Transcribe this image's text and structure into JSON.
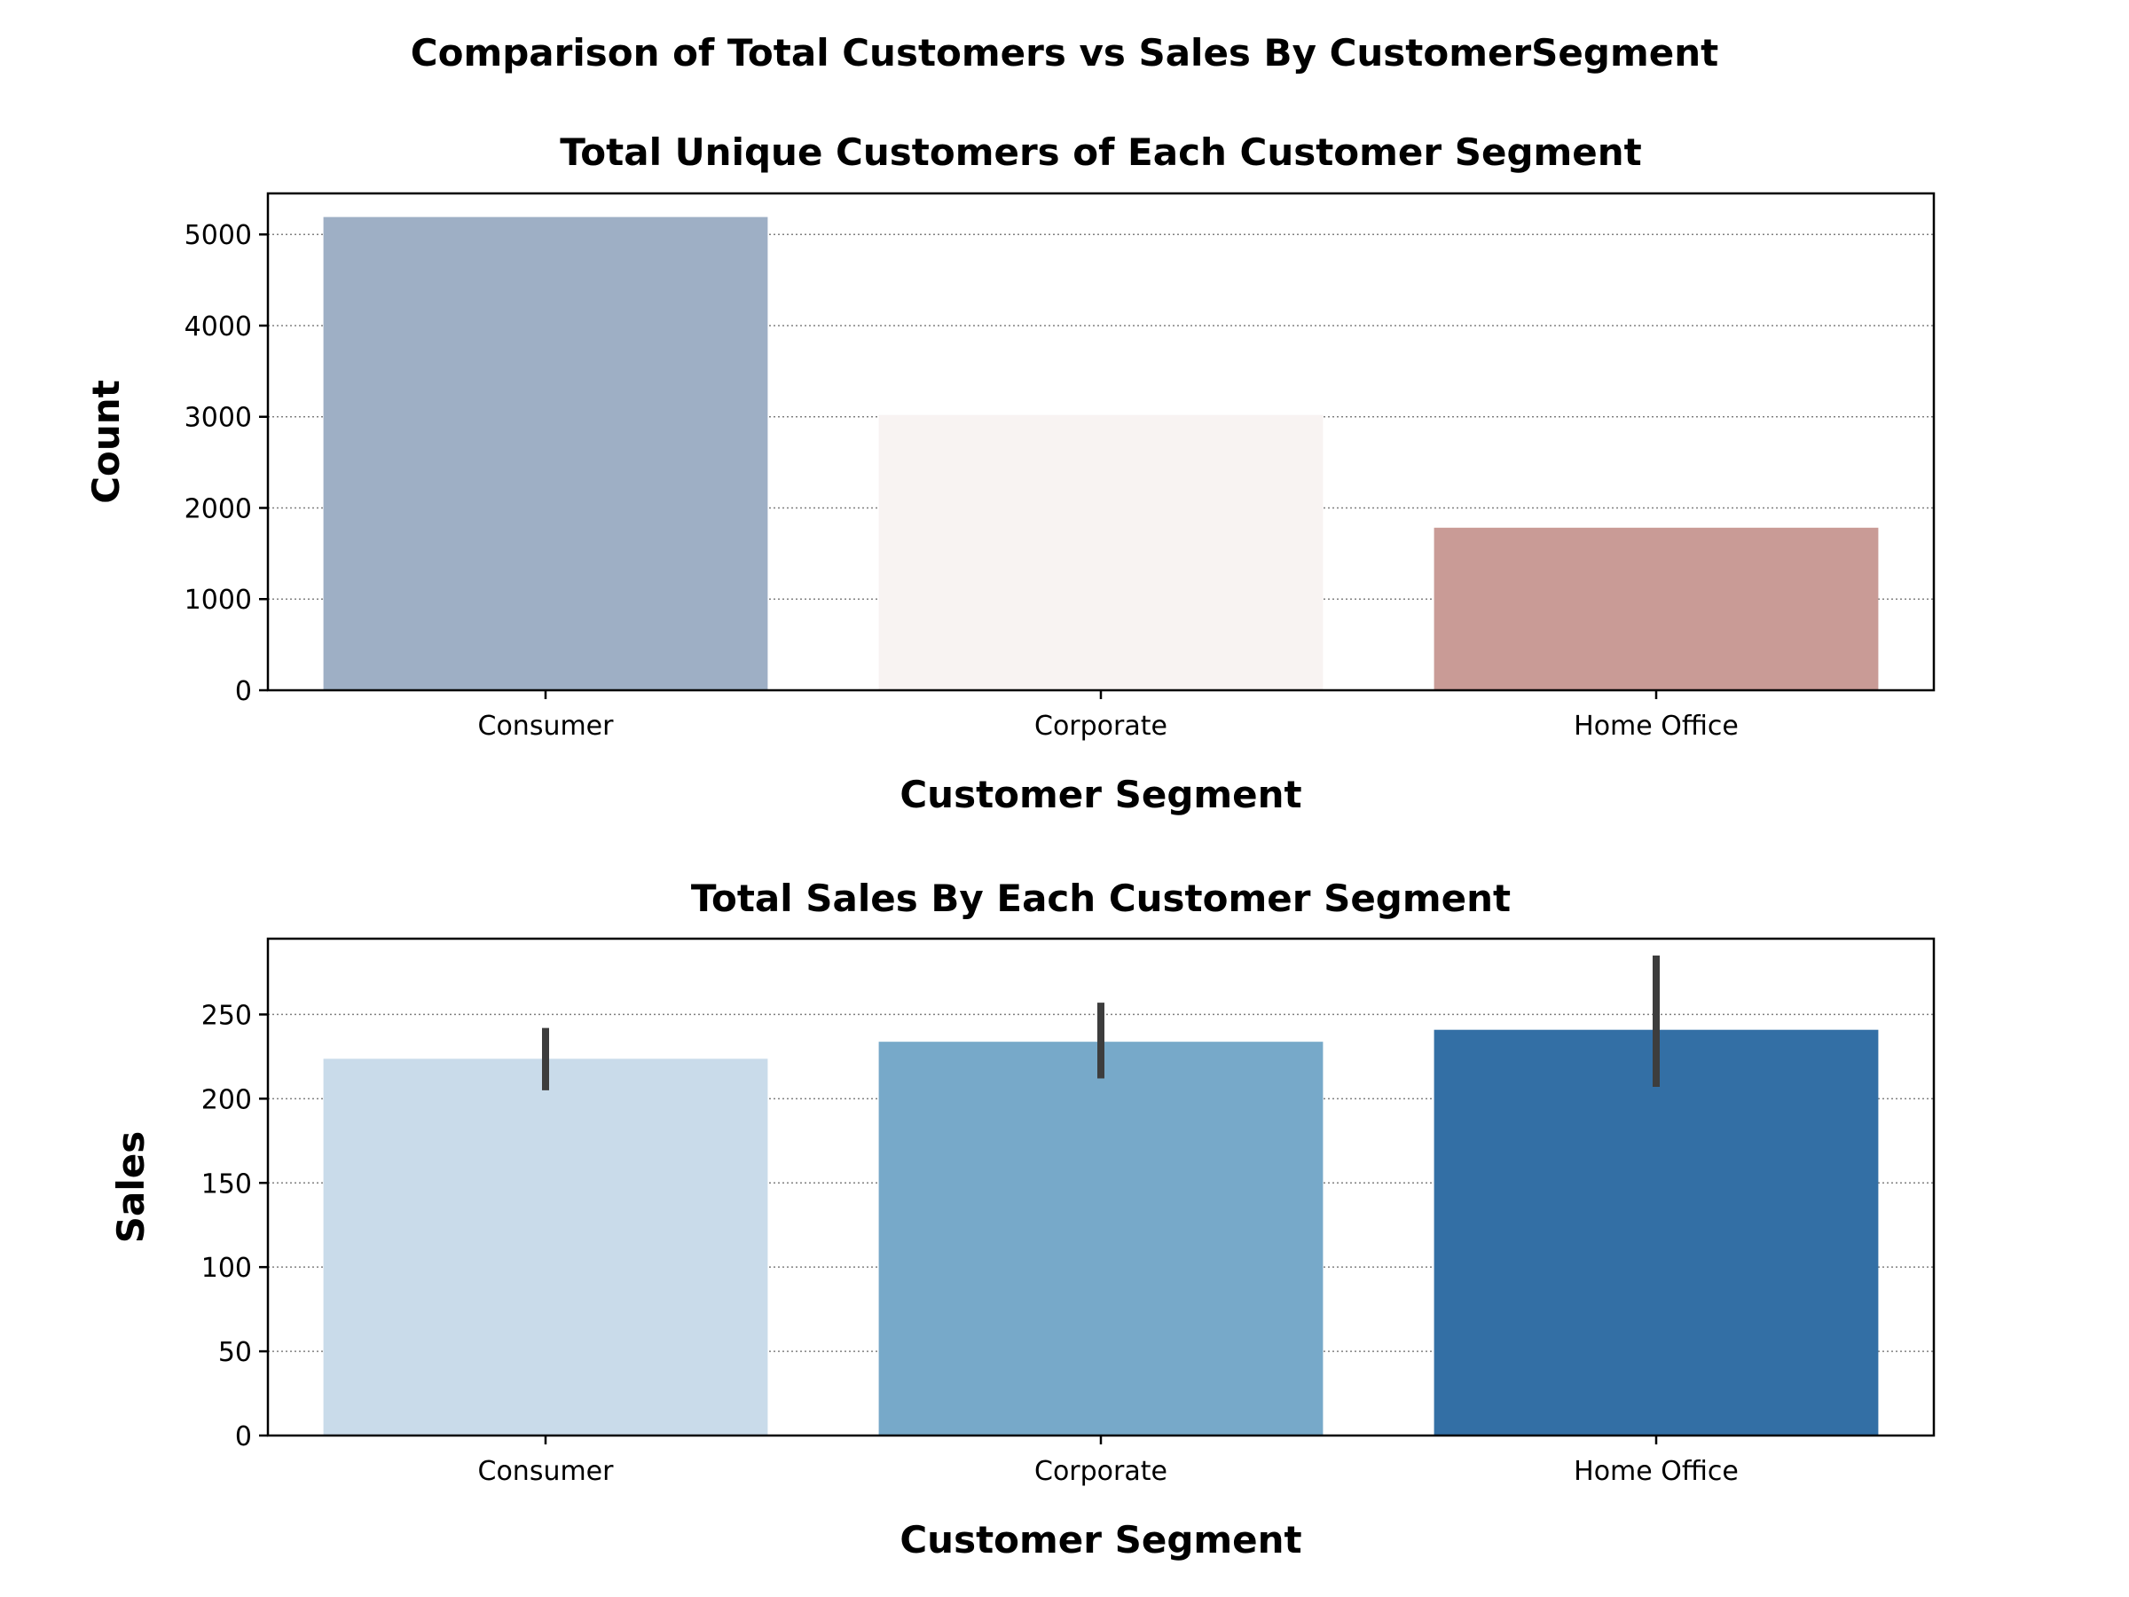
{
  "suptitle": "Comparison of Total Customers vs Sales By CustomerSegment",
  "chart_data": [
    {
      "type": "bar",
      "title": "Total Unique Customers of Each Customer Segment",
      "xlabel": "Customer Segment",
      "ylabel": "Count",
      "categories": [
        "Consumer",
        "Corporate",
        "Home Office"
      ],
      "values": [
        5191,
        3020,
        1783
      ],
      "colors": [
        "#9eafc5",
        "#f8f3f2",
        "#c99b96"
      ],
      "ylim": [
        0,
        5450
      ],
      "yticks": [
        0,
        1000,
        2000,
        3000,
        4000,
        5000
      ],
      "grid": "y-dotted",
      "legend": "none"
    },
    {
      "type": "bar",
      "title": "Total Sales By Each Customer Segment",
      "xlabel": "Customer Segment",
      "ylabel": "Sales",
      "categories": [
        "Consumer",
        "Corporate",
        "Home Office"
      ],
      "values": [
        223.7,
        233.8,
        240.9
      ],
      "error_bars": [
        [
          205,
          242
        ],
        [
          212,
          257
        ],
        [
          207,
          285
        ]
      ],
      "colors": [
        "#c9dbea",
        "#77a9c9",
        "#336fa5"
      ],
      "ylim": [
        0,
        295
      ],
      "yticks": [
        0,
        50,
        100,
        150,
        200,
        250
      ],
      "grid": "y-dotted",
      "legend": "none"
    }
  ]
}
